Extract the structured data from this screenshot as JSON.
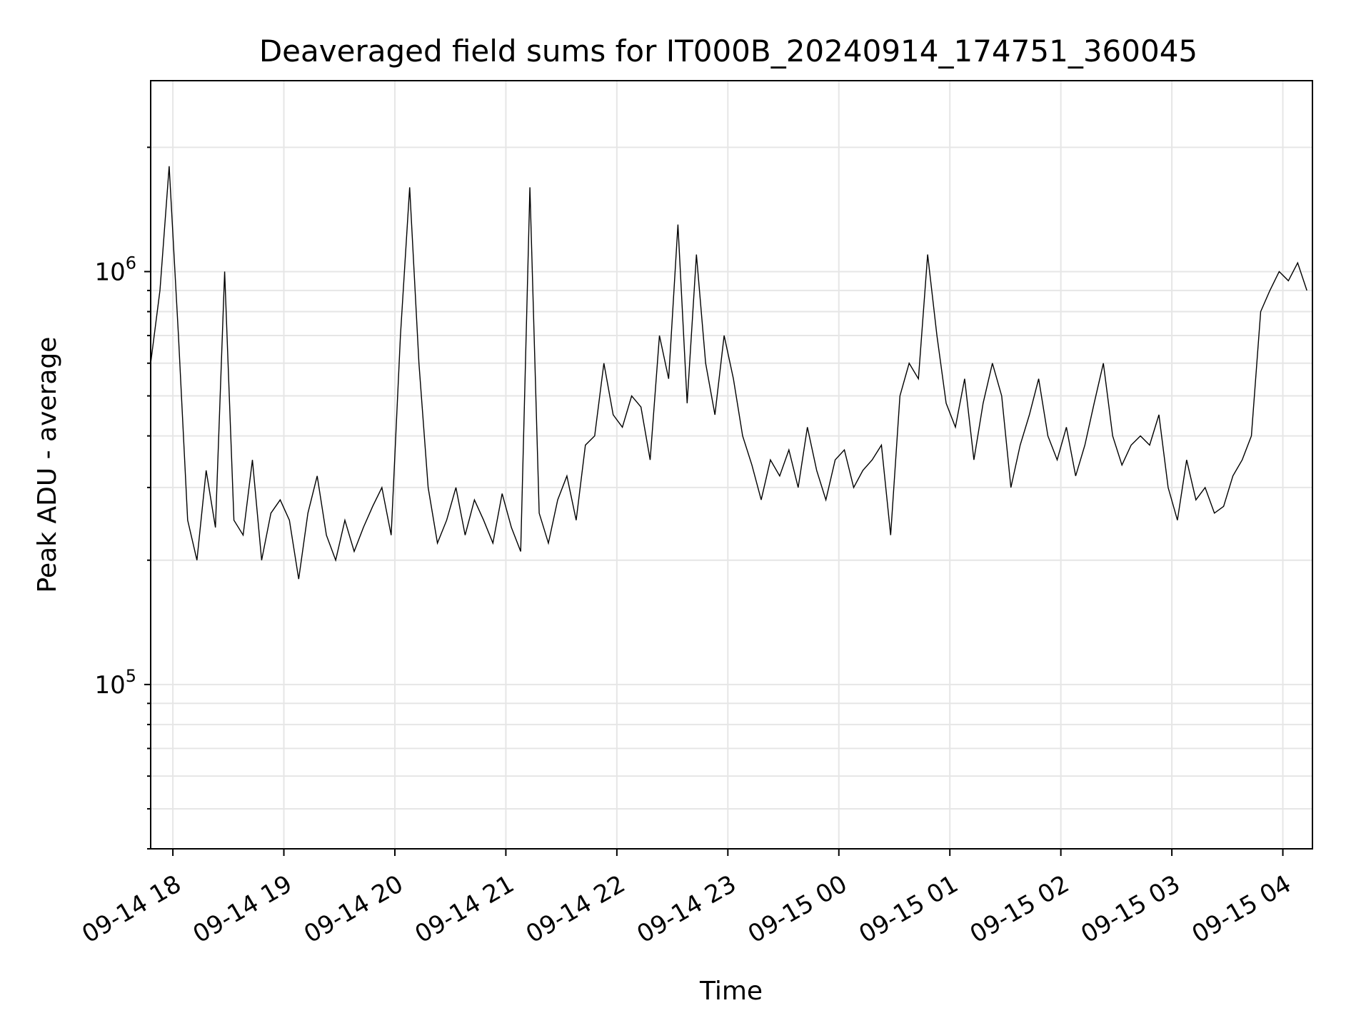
{
  "chart_data": {
    "type": "line",
    "title": "Deaveraged field sums for IT000B_20240914_174751_360045",
    "xlabel": "Time",
    "ylabel": "Peak ADU - average",
    "yscale": "log",
    "xlim": [
      "2024-09-14 17:48",
      "2024-09-15 04:16"
    ],
    "ylim": [
      40000,
      2900000
    ],
    "grid": true,
    "legend": "none",
    "line_color": "#000000",
    "x_ticks": [
      {
        "time": "2024-09-14 18:00",
        "label": "09-14 18"
      },
      {
        "time": "2024-09-14 19:00",
        "label": "09-14 19"
      },
      {
        "time": "2024-09-14 20:00",
        "label": "09-14 20"
      },
      {
        "time": "2024-09-14 21:00",
        "label": "09-14 21"
      },
      {
        "time": "2024-09-14 22:00",
        "label": "09-14 22"
      },
      {
        "time": "2024-09-14 23:00",
        "label": "09-14 23"
      },
      {
        "time": "2024-09-15 00:00",
        "label": "09-15 00"
      },
      {
        "time": "2024-09-15 01:00",
        "label": "09-15 01"
      },
      {
        "time": "2024-09-15 02:00",
        "label": "09-15 02"
      },
      {
        "time": "2024-09-15 03:00",
        "label": "09-15 03"
      },
      {
        "time": "2024-09-15 04:00",
        "label": "09-15 04"
      }
    ],
    "y_ticks": [
      {
        "value": 100000,
        "base": "10",
        "exp": "5"
      },
      {
        "value": 1000000,
        "base": "10",
        "exp": "6"
      }
    ],
    "x": [
      "2024-09-14 17:48",
      "2024-09-14 17:53",
      "2024-09-14 17:58",
      "2024-09-14 18:03",
      "2024-09-14 18:08",
      "2024-09-14 18:13",
      "2024-09-14 18:18",
      "2024-09-14 18:23",
      "2024-09-14 18:28",
      "2024-09-14 18:33",
      "2024-09-14 18:38",
      "2024-09-14 18:43",
      "2024-09-14 18:48",
      "2024-09-14 18:53",
      "2024-09-14 18:58",
      "2024-09-14 19:03",
      "2024-09-14 19:08",
      "2024-09-14 19:13",
      "2024-09-14 19:18",
      "2024-09-14 19:23",
      "2024-09-14 19:28",
      "2024-09-14 19:33",
      "2024-09-14 19:38",
      "2024-09-14 19:43",
      "2024-09-14 19:48",
      "2024-09-14 19:53",
      "2024-09-14 19:58",
      "2024-09-14 20:03",
      "2024-09-14 20:08",
      "2024-09-14 20:13",
      "2024-09-14 20:18",
      "2024-09-14 20:23",
      "2024-09-14 20:28",
      "2024-09-14 20:33",
      "2024-09-14 20:38",
      "2024-09-14 20:43",
      "2024-09-14 20:48",
      "2024-09-14 20:53",
      "2024-09-14 20:58",
      "2024-09-14 21:03",
      "2024-09-14 21:08",
      "2024-09-14 21:13",
      "2024-09-14 21:18",
      "2024-09-14 21:23",
      "2024-09-14 21:28",
      "2024-09-14 21:33",
      "2024-09-14 21:38",
      "2024-09-14 21:43",
      "2024-09-14 21:48",
      "2024-09-14 21:53",
      "2024-09-14 21:58",
      "2024-09-14 22:03",
      "2024-09-14 22:08",
      "2024-09-14 22:13",
      "2024-09-14 22:18",
      "2024-09-14 22:23",
      "2024-09-14 22:28",
      "2024-09-14 22:33",
      "2024-09-14 22:38",
      "2024-09-14 22:43",
      "2024-09-14 22:48",
      "2024-09-14 22:53",
      "2024-09-14 22:58",
      "2024-09-14 23:03",
      "2024-09-14 23:08",
      "2024-09-14 23:13",
      "2024-09-14 23:18",
      "2024-09-14 23:23",
      "2024-09-14 23:28",
      "2024-09-14 23:33",
      "2024-09-14 23:38",
      "2024-09-14 23:43",
      "2024-09-14 23:48",
      "2024-09-14 23:53",
      "2024-09-14 23:58",
      "2024-09-15 00:03",
      "2024-09-15 00:08",
      "2024-09-15 00:13",
      "2024-09-15 00:18",
      "2024-09-15 00:23",
      "2024-09-15 00:28",
      "2024-09-15 00:33",
      "2024-09-15 00:38",
      "2024-09-15 00:43",
      "2024-09-15 00:48",
      "2024-09-15 00:53",
      "2024-09-15 00:58",
      "2024-09-15 01:03",
      "2024-09-15 01:08",
      "2024-09-15 01:13",
      "2024-09-15 01:18",
      "2024-09-15 01:23",
      "2024-09-15 01:28",
      "2024-09-15 01:33",
      "2024-09-15 01:38",
      "2024-09-15 01:43",
      "2024-09-15 01:48",
      "2024-09-15 01:53",
      "2024-09-15 01:58",
      "2024-09-15 02:03",
      "2024-09-15 02:08",
      "2024-09-15 02:13",
      "2024-09-15 02:18",
      "2024-09-15 02:23",
      "2024-09-15 02:28",
      "2024-09-15 02:33",
      "2024-09-15 02:38",
      "2024-09-15 02:43",
      "2024-09-15 02:48",
      "2024-09-15 02:53",
      "2024-09-15 02:58",
      "2024-09-15 03:03",
      "2024-09-15 03:08",
      "2024-09-15 03:13",
      "2024-09-15 03:18",
      "2024-09-15 03:23",
      "2024-09-15 03:28",
      "2024-09-15 03:33",
      "2024-09-15 03:38",
      "2024-09-15 03:43",
      "2024-09-15 03:48",
      "2024-09-15 03:53",
      "2024-09-15 03:58",
      "2024-09-15 04:03",
      "2024-09-15 04:08",
      "2024-09-15 04:13"
    ],
    "y": [
      600000,
      900000,
      1800000,
      700000,
      250000,
      200000,
      330000,
      240000,
      1000000,
      250000,
      230000,
      350000,
      200000,
      260000,
      280000,
      250000,
      180000,
      260000,
      320000,
      230000,
      200000,
      250000,
      210000,
      240000,
      270000,
      300000,
      230000,
      700000,
      1600000,
      600000,
      300000,
      220000,
      250000,
      300000,
      230000,
      280000,
      250000,
      220000,
      290000,
      240000,
      210000,
      1600000,
      260000,
      220000,
      280000,
      320000,
      250000,
      380000,
      400000,
      600000,
      450000,
      420000,
      500000,
      470000,
      350000,
      700000,
      550000,
      1300000,
      480000,
      1100000,
      600000,
      450000,
      700000,
      550000,
      400000,
      340000,
      280000,
      350000,
      320000,
      370000,
      300000,
      420000,
      330000,
      280000,
      350000,
      370000,
      300000,
      330000,
      350000,
      380000,
      230000,
      500000,
      600000,
      550000,
      1100000,
      700000,
      480000,
      420000,
      550000,
      350000,
      480000,
      600000,
      500000,
      300000,
      380000,
      450000,
      550000,
      400000,
      350000,
      420000,
      320000,
      380000,
      480000,
      600000,
      400000,
      340000,
      380000,
      400000,
      380000,
      450000,
      300000,
      250000,
      350000,
      280000,
      300000,
      260000,
      270000,
      320000,
      350000,
      400000,
      800000,
      900000,
      1000000,
      950000,
      1050000,
      900000
    ]
  }
}
